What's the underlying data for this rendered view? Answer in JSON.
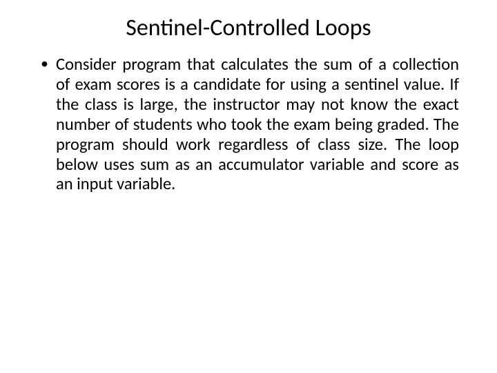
{
  "slide": {
    "title": "Sentinel-Controlled Loops",
    "bullet_text": "Consider program that calculates the sum of a collection of exam scores is a candidate for using a sentinel value. If the class is large, the instructor may not know the exact number of students who took the exam being graded. The program should work regardless of class size. The loop below uses  sum  as an accumulator variable and  score  as an input variable."
  },
  "style": {
    "background_color": "#ffffff",
    "text_color": "#000000",
    "title_fontsize": 34,
    "body_fontsize": 24.5,
    "font_family": "Calibri"
  }
}
